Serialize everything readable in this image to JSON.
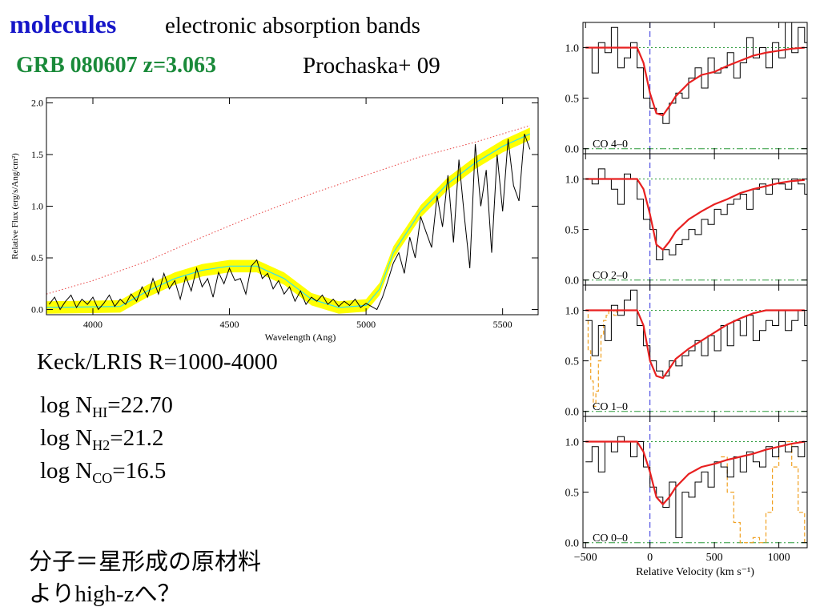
{
  "header": {
    "title": "molecules",
    "subtitle": "electronic absorption bands",
    "object_label": "GRB 080607 z=3.063",
    "reference": "Prochaska+ 09"
  },
  "notes": {
    "instrument": "Keck/LRIS R=1000-4000",
    "log_lines": [
      {
        "prefix": "log N",
        "sub": "HI",
        "value": "=22.70"
      },
      {
        "prefix": "log N",
        "sub": "H2",
        "value": "=21.2"
      },
      {
        "prefix": "log N",
        "sub": "CO",
        "value": "=16.5"
      }
    ],
    "jp_line1": "分子＝星形成の原材料",
    "jp_line2_pre": "より",
    "jp_line2_mid": "high-z",
    "jp_line2_post": "へ？"
  },
  "colors": {
    "title": "#1515c8",
    "object_label": "#1a8a3a",
    "model": "#e82020",
    "continuum": "#e84040",
    "band": "#ffff00",
    "cyan": "#33e0ee",
    "zero_line": "#2a9a3a",
    "vline": "#2a2adc",
    "contam": "#f0a020"
  },
  "chart_data": [
    {
      "type": "line",
      "xlabel": "Wavelength (Ang)",
      "ylabel": "Relative Flux (erg/s/Ang/cm²)",
      "xlim": [
        3830,
        5630
      ],
      "ylim": [
        -0.05,
        2.05
      ],
      "xticks": [
        4000,
        4500,
        5000,
        5500
      ],
      "xtick_labels": [
        "4000",
        "4500",
        "5000",
        "5500"
      ],
      "yticks": [
        0.0,
        0.5,
        1.0,
        1.5,
        2.0
      ],
      "ytick_labels": [
        "0.0",
        "0.5",
        "1.0",
        "1.5",
        "2.0"
      ],
      "continuum": {
        "x": [
          3830,
          4000,
          4200,
          4400,
          4600,
          4800,
          5000,
          5200,
          5400,
          5600
        ],
        "y": [
          0.15,
          0.28,
          0.47,
          0.7,
          0.92,
          1.12,
          1.3,
          1.48,
          1.62,
          1.78
        ]
      },
      "model": {
        "x": [
          3830,
          4100,
          4200,
          4300,
          4400,
          4500,
          4600,
          4700,
          4800,
          4900,
          5000,
          5050,
          5100,
          5200,
          5300,
          5400,
          5500,
          5600
        ],
        "y": [
          0.02,
          0.03,
          0.18,
          0.3,
          0.38,
          0.42,
          0.42,
          0.3,
          0.1,
          0.02,
          0.04,
          0.2,
          0.55,
          0.95,
          1.22,
          1.42,
          1.58,
          1.7
        ]
      },
      "band_halfwidth": 0.06,
      "flux": {
        "x": [
          3840,
          3860,
          3880,
          3900,
          3920,
          3940,
          3960,
          3980,
          4000,
          4020,
          4040,
          4060,
          4080,
          4100,
          4120,
          4140,
          4160,
          4180,
          4200,
          4220,
          4240,
          4260,
          4280,
          4300,
          4320,
          4340,
          4360,
          4380,
          4400,
          4420,
          4440,
          4460,
          4480,
          4500,
          4520,
          4540,
          4560,
          4580,
          4600,
          4620,
          4640,
          4660,
          4680,
          4700,
          4720,
          4740,
          4760,
          4780,
          4800,
          4820,
          4840,
          4860,
          4880,
          4900,
          4920,
          4940,
          4960,
          4980,
          5000,
          5020,
          5040,
          5060,
          5080,
          5100,
          5120,
          5140,
          5160,
          5180,
          5200,
          5220,
          5240,
          5260,
          5280,
          5300,
          5320,
          5340,
          5360,
          5380,
          5400,
          5420,
          5440,
          5460,
          5480,
          5500,
          5520,
          5540,
          5560,
          5580,
          5600
        ],
        "y": [
          0.05,
          0.12,
          0.0,
          0.08,
          0.14,
          0.02,
          0.1,
          0.05,
          0.12,
          0.0,
          0.06,
          0.14,
          0.03,
          0.1,
          0.05,
          0.15,
          0.08,
          0.22,
          0.12,
          0.3,
          0.15,
          0.35,
          0.2,
          0.28,
          0.1,
          0.32,
          0.18,
          0.4,
          0.22,
          0.3,
          0.12,
          0.36,
          0.25,
          0.4,
          0.28,
          0.3,
          0.15,
          0.42,
          0.48,
          0.3,
          0.35,
          0.2,
          0.28,
          0.15,
          0.22,
          0.08,
          0.18,
          0.05,
          0.12,
          0.08,
          0.14,
          0.05,
          0.1,
          0.03,
          0.08,
          0.04,
          0.1,
          0.02,
          0.06,
          0.03,
          0.0,
          0.12,
          0.28,
          0.45,
          0.55,
          0.35,
          0.7,
          0.5,
          0.9,
          0.75,
          0.6,
          1.1,
          0.8,
          1.3,
          0.65,
          1.45,
          0.9,
          0.4,
          1.6,
          1.0,
          1.35,
          0.55,
          1.5,
          0.95,
          1.65,
          1.2,
          1.05,
          1.7,
          1.55
        ]
      }
    },
    {
      "type": "line",
      "panels": [
        {
          "label": "CO 4–0",
          "x": [
            -500,
            -450,
            -400,
            -350,
            -300,
            -250,
            -200,
            -150,
            -100,
            -50,
            0,
            50,
            100,
            150,
            200,
            250,
            300,
            350,
            400,
            450,
            500,
            550,
            600,
            650,
            700,
            750,
            800,
            850,
            900,
            950,
            1000,
            1050,
            1100,
            1150,
            1200
          ],
          "y": [
            1.0,
            0.75,
            1.05,
            0.95,
            1.2,
            0.8,
            0.9,
            1.05,
            0.8,
            0.5,
            0.4,
            0.35,
            0.25,
            0.45,
            0.55,
            0.5,
            0.7,
            0.8,
            0.6,
            0.9,
            0.75,
            0.8,
            0.95,
            0.7,
            0.85,
            1.1,
            0.9,
            1.0,
            0.8,
            1.05,
            0.9,
            1.25,
            0.95,
            1.2,
            1.05
          ],
          "model_x": [
            -500,
            -100,
            -50,
            0,
            50,
            100,
            150,
            200,
            300,
            400,
            500,
            600,
            700,
            800,
            900,
            1000,
            1100,
            1200
          ],
          "model_y": [
            1.0,
            1.0,
            0.85,
            0.55,
            0.35,
            0.33,
            0.42,
            0.52,
            0.65,
            0.73,
            0.76,
            0.82,
            0.87,
            0.92,
            0.95,
            0.97,
            0.99,
            1.0
          ]
        },
        {
          "label": "CO 2–0",
          "x": [
            -500,
            -450,
            -400,
            -350,
            -300,
            -250,
            -200,
            -150,
            -100,
            -50,
            0,
            50,
            100,
            150,
            200,
            250,
            300,
            350,
            400,
            450,
            500,
            550,
            600,
            650,
            700,
            750,
            800,
            850,
            900,
            950,
            1000,
            1050,
            1100,
            1150,
            1200
          ],
          "y": [
            1.0,
            0.95,
            1.1,
            1.0,
            0.9,
            0.75,
            1.05,
            1.0,
            0.8,
            0.6,
            0.5,
            0.2,
            0.3,
            0.25,
            0.35,
            0.4,
            0.5,
            0.45,
            0.6,
            0.55,
            0.7,
            0.65,
            0.75,
            0.8,
            0.85,
            0.7,
            0.9,
            0.95,
            0.85,
            1.0,
            0.95,
            0.9,
            1.0,
            0.95,
            0.85
          ],
          "model_x": [
            -500,
            -100,
            -50,
            0,
            50,
            100,
            150,
            200,
            300,
            400,
            500,
            600,
            700,
            800,
            900,
            1000,
            1100,
            1200
          ],
          "model_y": [
            1.0,
            1.0,
            0.9,
            0.65,
            0.35,
            0.3,
            0.38,
            0.48,
            0.6,
            0.68,
            0.75,
            0.8,
            0.86,
            0.9,
            0.93,
            0.96,
            0.98,
            0.99
          ]
        },
        {
          "label": "CO 1–0",
          "x": [
            -500,
            -450,
            -400,
            -350,
            -300,
            -250,
            -200,
            -150,
            -100,
            -50,
            0,
            50,
            100,
            150,
            200,
            250,
            300,
            350,
            400,
            450,
            500,
            550,
            600,
            650,
            700,
            750,
            800,
            850,
            900,
            950,
            1000,
            1050,
            1100,
            1150,
            1200
          ],
          "y": [
            0.9,
            0.55,
            0.85,
            0.7,
            1.05,
            0.95,
            1.1,
            1.2,
            0.85,
            0.65,
            0.5,
            0.4,
            0.35,
            0.5,
            0.45,
            0.55,
            0.6,
            0.7,
            0.55,
            0.75,
            0.6,
            0.85,
            0.65,
            0.9,
            0.75,
            0.95,
            0.7,
            0.8,
            0.9,
            0.85,
            1.0,
            0.8,
            0.9,
            1.0,
            0.85
          ],
          "model_x": [
            -500,
            -100,
            -50,
            0,
            50,
            100,
            150,
            200,
            300,
            400,
            500,
            600,
            700,
            800,
            900,
            1000,
            1100,
            1200
          ],
          "model_y": [
            1.0,
            1.0,
            0.85,
            0.5,
            0.35,
            0.33,
            0.42,
            0.52,
            0.62,
            0.7,
            0.78,
            0.86,
            0.92,
            0.97,
            1.0,
            1.0,
            1.0,
            1.0
          ],
          "contam_x": [
            -500,
            -480,
            -460,
            -440,
            -420,
            -400,
            -380,
            -360,
            -340,
            -320,
            -300,
            -280,
            -260,
            -240,
            -220,
            -200
          ],
          "contam_y": [
            1.0,
            0.6,
            0.3,
            0.05,
            0.2,
            0.5,
            0.75,
            0.9,
            0.95,
            1.0,
            1.0,
            0.95,
            1.0,
            1.0,
            1.0,
            1.0
          ]
        },
        {
          "label": "CO 0–0",
          "x": [
            -500,
            -450,
            -400,
            -350,
            -300,
            -250,
            -200,
            -150,
            -100,
            -50,
            0,
            50,
            100,
            150,
            200,
            250,
            300,
            350,
            400,
            450,
            500,
            550,
            600,
            650,
            700,
            750,
            800,
            850,
            900,
            950,
            1000,
            1050,
            1100,
            1150,
            1200
          ],
          "y": [
            0.8,
            0.95,
            0.7,
            1.0,
            0.9,
            1.05,
            1.0,
            0.85,
            1.0,
            0.75,
            0.55,
            0.45,
            0.35,
            0.6,
            0.05,
            0.5,
            0.45,
            0.6,
            0.7,
            0.55,
            0.8,
            0.75,
            0.65,
            0.85,
            0.7,
            0.9,
            0.8,
            0.75,
            0.95,
            0.85,
            1.0,
            0.9,
            0.95,
            0.85,
            1.0
          ],
          "model_x": [
            -500,
            -100,
            -50,
            0,
            50,
            100,
            150,
            200,
            300,
            400,
            500,
            600,
            700,
            800,
            900,
            1000,
            1100,
            1200
          ],
          "model_y": [
            1.0,
            1.0,
            0.9,
            0.7,
            0.45,
            0.38,
            0.45,
            0.55,
            0.68,
            0.75,
            0.78,
            0.82,
            0.85,
            0.88,
            0.92,
            0.95,
            0.98,
            1.0
          ],
          "contam_x": [
            550,
            600,
            650,
            700,
            750,
            800,
            850,
            900,
            950,
            1000,
            1050,
            1100,
            1150,
            1200
          ],
          "contam_y": [
            0.85,
            0.5,
            0.2,
            0.0,
            0.0,
            0.05,
            0.0,
            0.3,
            0.75,
            1.0,
            1.0,
            0.75,
            0.3,
            0.0
          ]
        }
      ],
      "xlabel": "Relative Velocity (km s⁻¹)",
      "xlim": [
        -520,
        1220
      ],
      "ylim": [
        -0.05,
        1.25
      ],
      "xticks": [
        -500,
        0,
        500,
        1000
      ],
      "xtick_labels": [
        "−500",
        "0",
        "500",
        "1000"
      ],
      "yticks": [
        0.0,
        0.5,
        1.0
      ],
      "ytick_labels": [
        "0.0",
        "0.5",
        "1.0"
      ]
    }
  ]
}
